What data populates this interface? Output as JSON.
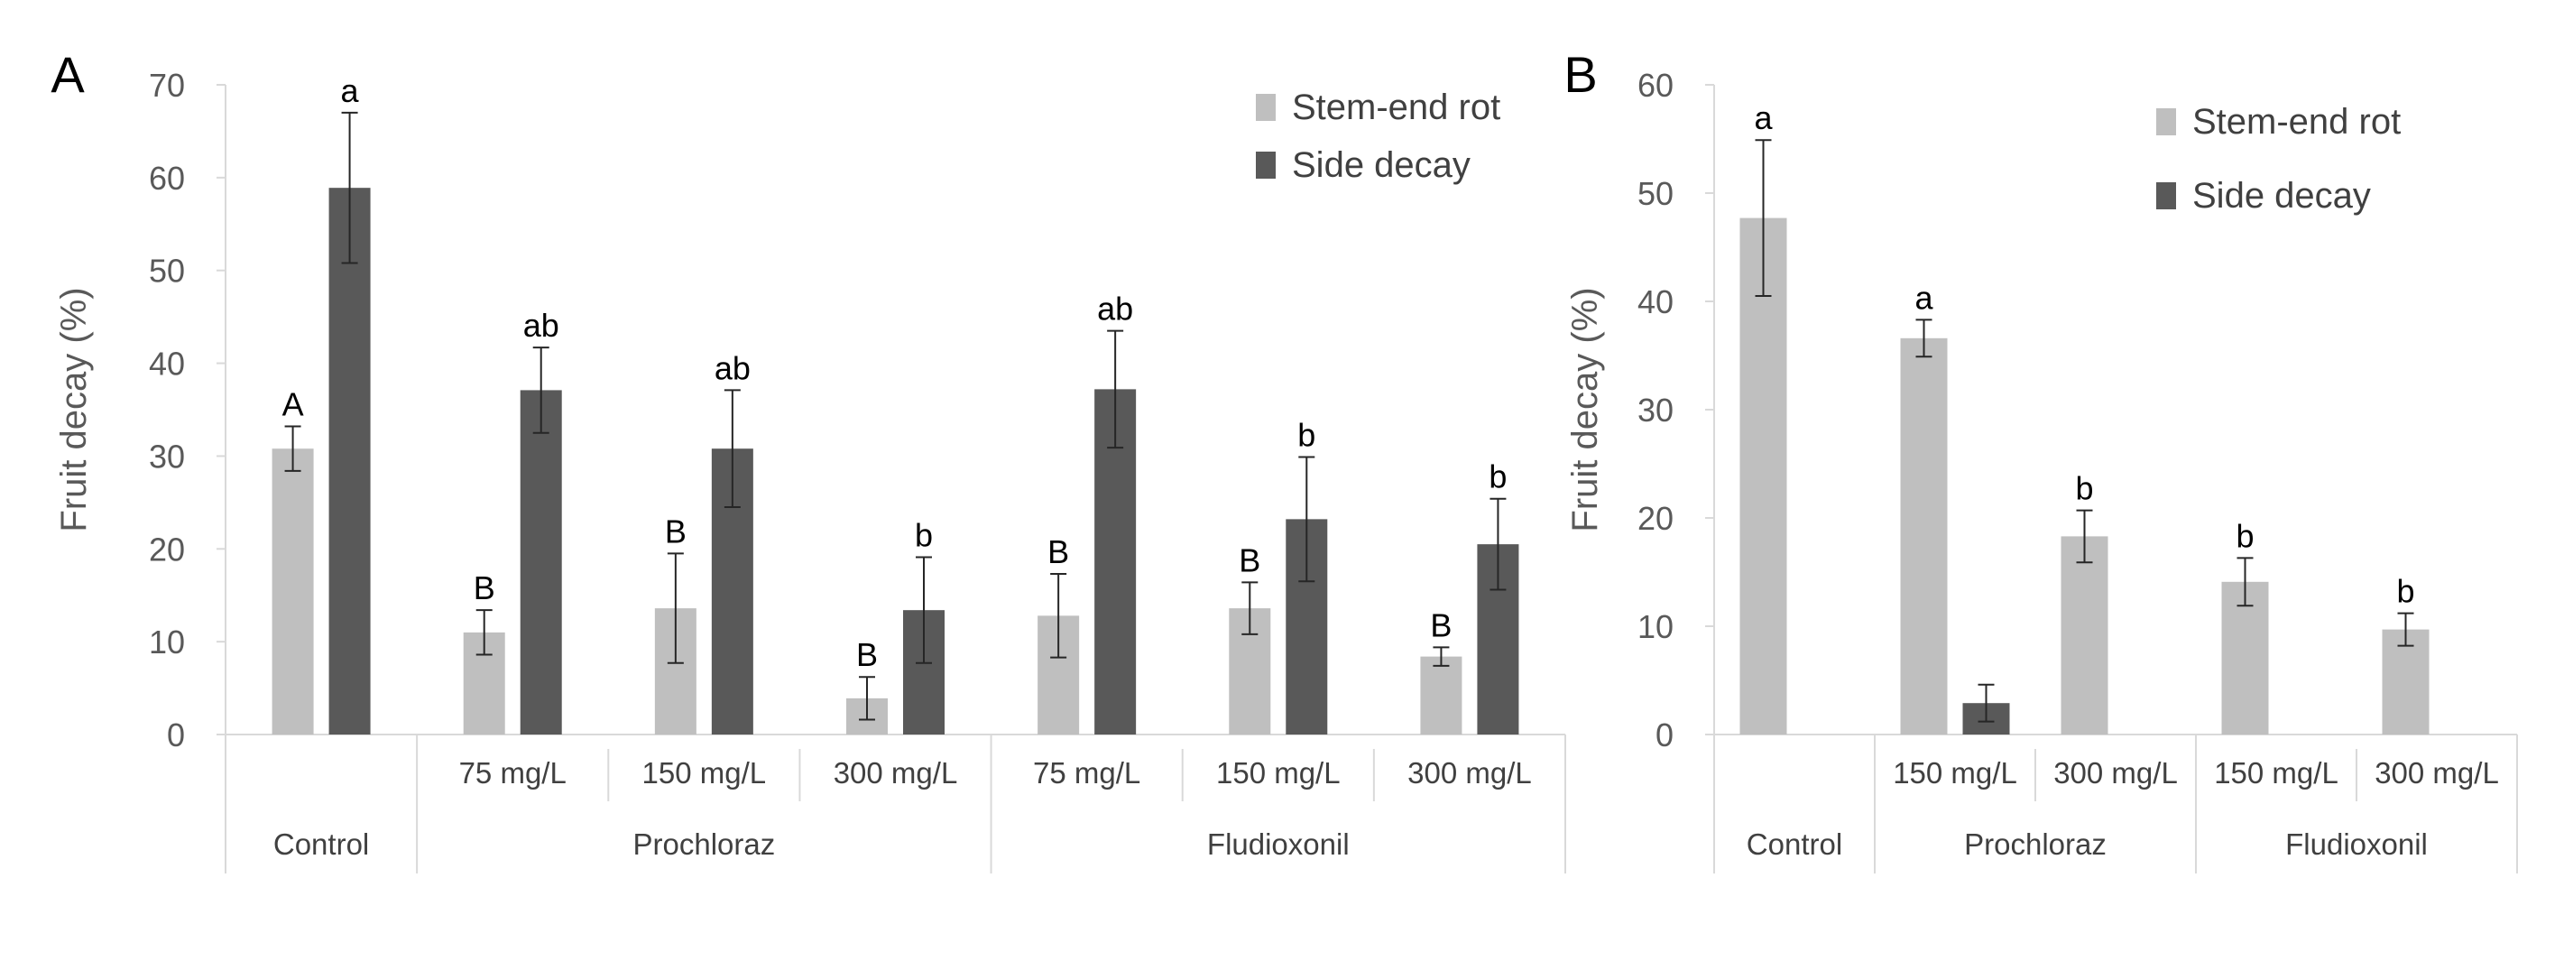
{
  "chart_data": [
    {
      "panel_label": "A",
      "type": "bar",
      "ylabel": "Fruit decay (%)",
      "ylim": [
        0,
        70
      ],
      "yticks": [
        0,
        10,
        20,
        30,
        40,
        50,
        60,
        70
      ],
      "groups": [
        {
          "name": "Control",
          "categories": [
            ""
          ]
        },
        {
          "name": "Prochloraz",
          "categories": [
            "75 mg/L",
            "150 mg/L",
            "300 mg/L"
          ]
        },
        {
          "name": "Fludioxonil",
          "categories": [
            "75 mg/L",
            "150 mg/L",
            "300 mg/L"
          ]
        }
      ],
      "series": [
        {
          "name": "Stem-end rot",
          "color": "#bfbfbf",
          "values": [
            30.8,
            11.0,
            13.6,
            3.9,
            12.8,
            13.6,
            8.4
          ],
          "errors": [
            2.4,
            2.4,
            5.9,
            2.3,
            4.5,
            2.8,
            1.0
          ],
          "letters": [
            "A",
            "B",
            "B",
            "B",
            "B",
            "B",
            "B"
          ]
        },
        {
          "name": "Side decay",
          "color": "#595959",
          "values": [
            58.9,
            37.1,
            30.8,
            13.4,
            37.2,
            23.2,
            20.5
          ],
          "errors": [
            8.1,
            4.6,
            6.3,
            5.7,
            6.3,
            6.7,
            4.9
          ],
          "letters": [
            "a",
            "ab",
            "ab",
            "b",
            "ab",
            "b",
            "b"
          ]
        }
      ],
      "legend_position": "top-right"
    },
    {
      "panel_label": "B",
      "type": "bar",
      "ylabel": "Fruit decay (%)",
      "ylim": [
        0,
        60
      ],
      "yticks": [
        0,
        10,
        20,
        30,
        40,
        50,
        60
      ],
      "groups": [
        {
          "name": "Control",
          "categories": [
            ""
          ]
        },
        {
          "name": "Prochloraz",
          "categories": [
            "150 mg/L",
            "300 mg/L"
          ]
        },
        {
          "name": "Fludioxonil",
          "categories": [
            "150 mg/L",
            "300 mg/L"
          ]
        }
      ],
      "series": [
        {
          "name": "Stem-end rot",
          "color": "#bfbfbf",
          "values": [
            47.7,
            36.6,
            18.3,
            14.1,
            9.7
          ],
          "errors": [
            7.2,
            1.7,
            2.4,
            2.2,
            1.5
          ],
          "letters": [
            "a",
            "a",
            "b",
            "b",
            "b"
          ]
        },
        {
          "name": "Side decay",
          "color": "#595959",
          "values": [
            null,
            2.9,
            null,
            null,
            null
          ],
          "errors": [
            null,
            1.7,
            null,
            null,
            null
          ],
          "letters": [
            null,
            null,
            null,
            null,
            null
          ]
        }
      ],
      "legend_position": "top-right"
    }
  ]
}
